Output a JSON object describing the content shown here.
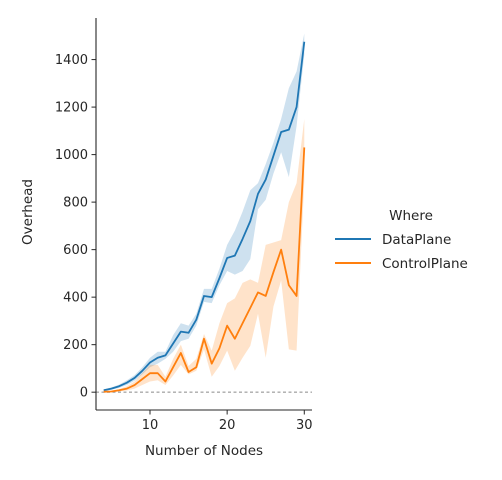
{
  "chart_data": {
    "type": "line",
    "xlabel": "Number of Nodes",
    "ylabel": "Overhead",
    "xlim": [
      3,
      31
    ],
    "ylim": [
      -75,
      1575
    ],
    "xticks": [
      10,
      20,
      30
    ],
    "yticks": [
      0,
      200,
      400,
      600,
      800,
      1000,
      1200,
      1400
    ],
    "grid": false,
    "reference_line": {
      "y": 0,
      "style": "dashed",
      "color": "#aaaaaa"
    },
    "legend": {
      "title": "Where",
      "placement": "center-right"
    },
    "series": [
      {
        "name": "DataPlane",
        "color": "#1f77b4",
        "x": [
          4,
          5,
          6,
          7,
          8,
          9,
          10,
          11,
          12,
          13,
          14,
          15,
          16,
          17,
          18,
          19,
          20,
          21,
          22,
          23,
          24,
          25,
          26,
          27,
          28,
          29,
          30
        ],
        "y": [
          8,
          15,
          25,
          40,
          60,
          90,
          125,
          145,
          155,
          205,
          255,
          250,
          305,
          405,
          400,
          480,
          565,
          575,
          645,
          720,
          835,
          895,
          995,
          1095,
          1105,
          1200,
          1475
        ],
        "lower": [
          5,
          10,
          18,
          30,
          48,
          75,
          105,
          120,
          140,
          170,
          215,
          225,
          280,
          380,
          375,
          450,
          510,
          495,
          510,
          560,
          770,
          810,
          920,
          1010,
          905,
          1120,
          1420
        ],
        "upper": [
          12,
          20,
          32,
          50,
          72,
          105,
          145,
          170,
          170,
          240,
          290,
          280,
          330,
          435,
          435,
          520,
          620,
          680,
          760,
          850,
          880,
          960,
          1050,
          1150,
          1280,
          1350,
          1510
        ]
      },
      {
        "name": "ControlPlane",
        "color": "#ff7f0e",
        "x": [
          4,
          5,
          6,
          7,
          8,
          9,
          10,
          11,
          12,
          13,
          14,
          15,
          16,
          17,
          18,
          19,
          20,
          21,
          22,
          23,
          24,
          25,
          26,
          27,
          28,
          29,
          30
        ],
        "y": [
          2,
          3,
          8,
          15,
          30,
          55,
          80,
          80,
          45,
          105,
          165,
          85,
          105,
          225,
          120,
          185,
          280,
          225,
          290,
          355,
          420,
          405,
          505,
          600,
          450,
          405,
          1030
        ],
        "lower": [
          0,
          1,
          3,
          7,
          15,
          30,
          45,
          50,
          30,
          70,
          115,
          75,
          90,
          180,
          65,
          110,
          175,
          90,
          145,
          195,
          330,
          145,
          360,
          470,
          180,
          175,
          890
        ],
        "upper": [
          4,
          6,
          13,
          25,
          45,
          80,
          115,
          115,
          65,
          140,
          200,
          110,
          140,
          245,
          175,
          290,
          375,
          395,
          460,
          475,
          460,
          620,
          630,
          640,
          800,
          880,
          1150
        ]
      }
    ]
  }
}
